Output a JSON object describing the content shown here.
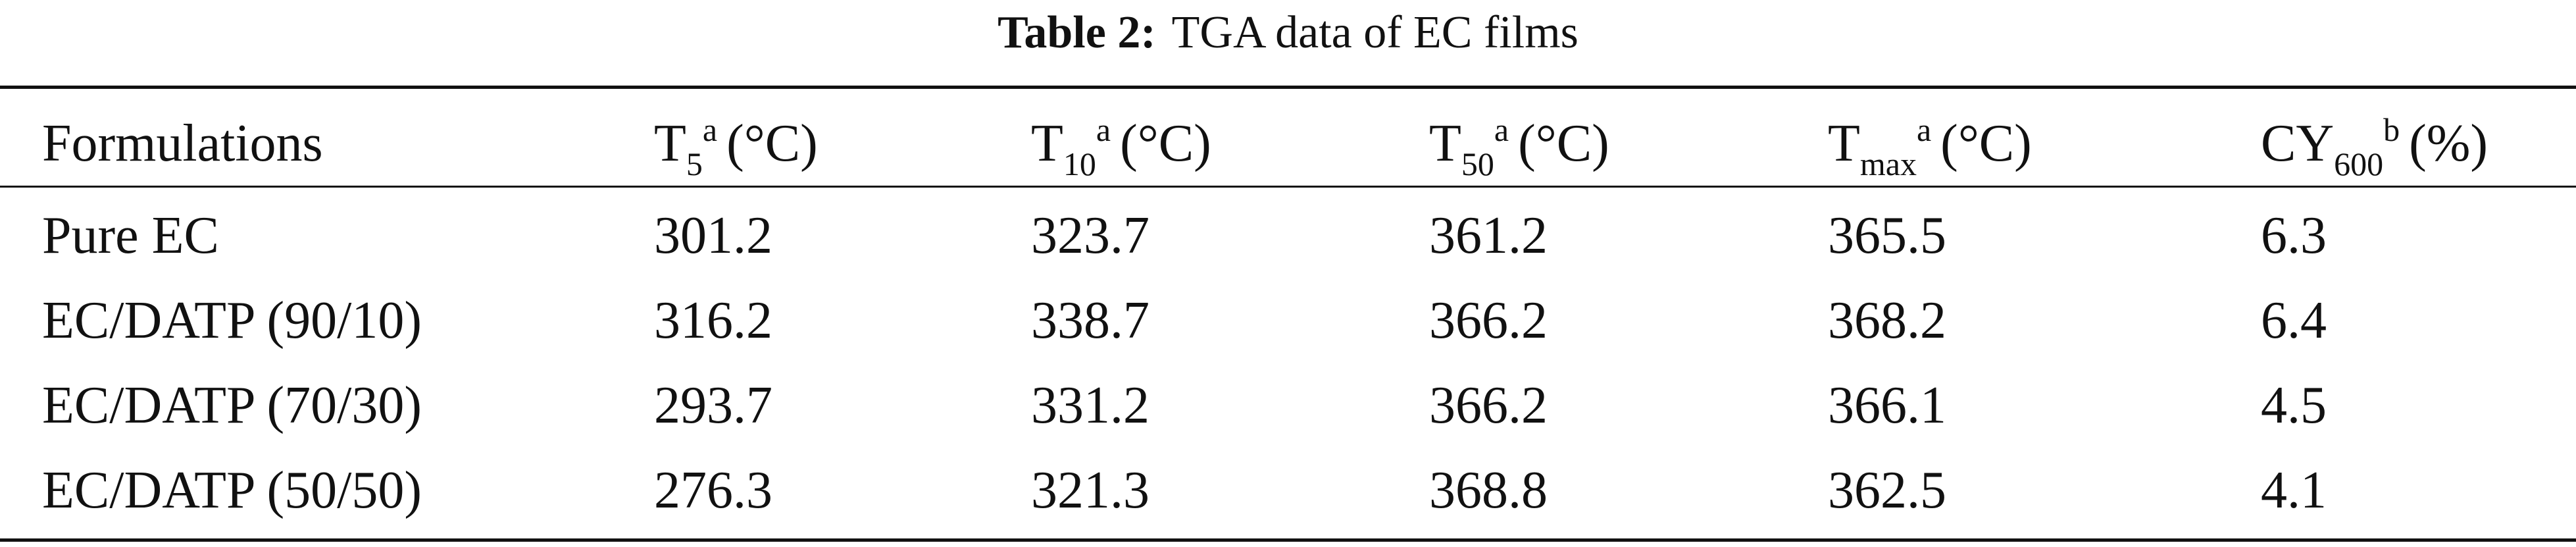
{
  "table": {
    "caption": {
      "label": "Table 2:",
      "text": "TGA data of EC films"
    },
    "headers": [
      {
        "base": "Formulations",
        "sub": "",
        "sup": "",
        "unit": ""
      },
      {
        "base": "T",
        "sub": "5",
        "sup": "a",
        "unit": "(°C)"
      },
      {
        "base": "T",
        "sub": "10",
        "sup": "a",
        "unit": "(°C)"
      },
      {
        "base": "T",
        "sub": "50",
        "sup": "a",
        "unit": "(°C)"
      },
      {
        "base": "T",
        "sub": "max",
        "sup": "a",
        "unit": "(°C)"
      },
      {
        "base": "CY",
        "sub": "600",
        "sup": "b",
        "unit": "(%)"
      }
    ],
    "rows": [
      [
        "Pure EC",
        "301.2",
        "323.7",
        "361.2",
        "365.5",
        "6.3"
      ],
      [
        "EC/DATP (90/10)",
        "316.2",
        "338.7",
        "366.2",
        "368.2",
        "6.4"
      ],
      [
        "EC/DATP (70/30)",
        "293.7",
        "331.2",
        "366.2",
        "366.1",
        "4.5"
      ],
      [
        "EC/DATP (50/50)",
        "276.3",
        "321.3",
        "368.8",
        "362.5",
        "4.1"
      ]
    ]
  }
}
